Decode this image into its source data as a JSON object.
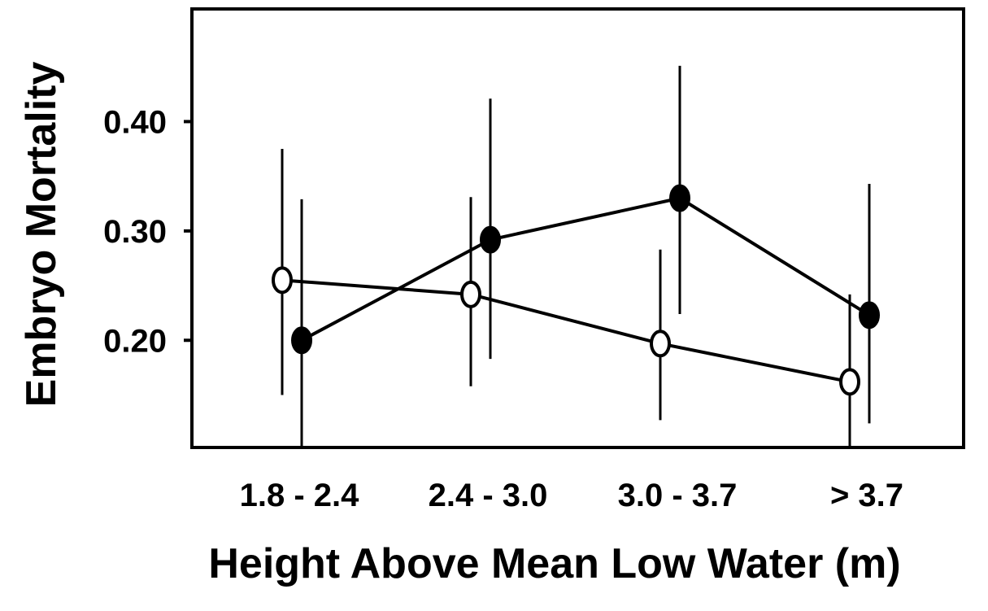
{
  "chart_data": {
    "type": "line",
    "title": "",
    "xlabel": "Height Above Mean Low Water (m)",
    "ylabel": "Embryo Mortality",
    "categories": [
      "1.8 - 2.4",
      "2.4 - 3.0",
      "3.0 - 3.7",
      "> 3.7"
    ],
    "yticks": [
      {
        "value": 0.2,
        "label": "0.20"
      },
      {
        "value": 0.3,
        "label": "0.30"
      },
      {
        "value": 0.4,
        "label": "0.40"
      }
    ],
    "ylim": [
      0.102,
      0.503
    ],
    "grid": false,
    "legend": "none",
    "series": [
      {
        "marker": "open-circle",
        "color": "#000000",
        "values": [
          0.255,
          0.242,
          0.197,
          0.162
        ],
        "error_low": [
          0.15,
          0.158,
          0.127,
          0.1
        ],
        "error_high": [
          0.375,
          0.331,
          0.283,
          0.242
        ]
      },
      {
        "marker": "filled-circle",
        "color": "#000000",
        "values": [
          0.2,
          0.292,
          0.33,
          0.223
        ],
        "error_low": [
          0.1,
          0.183,
          0.224,
          0.124
        ],
        "error_high": [
          0.329,
          0.421,
          0.451,
          0.343
        ]
      }
    ]
  }
}
